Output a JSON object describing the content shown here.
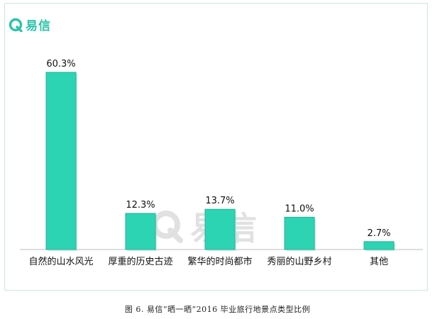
{
  "brand": {
    "name": "易信"
  },
  "watermark": {
    "text": "易信"
  },
  "caption": "图 6. 易信“晒一晒”2016 毕业旅行地景点类型比例",
  "colors": {
    "bar": "#2dd4b4",
    "bar_edge": "#21b394",
    "axis": "#bdbdbd",
    "brand": "#2bc4a8"
  },
  "chart_data": {
    "type": "bar",
    "title": "",
    "xlabel": "",
    "ylabel": "",
    "categories": [
      "自然的山水风光",
      "厚重的历史古迹",
      "繁华的时尚都市",
      "秀丽的山野乡村",
      "其他"
    ],
    "values": [
      60.3,
      12.3,
      13.7,
      11.0,
      2.7
    ],
    "value_labels": [
      "60.3%",
      "12.3%",
      "13.7%",
      "11.0%",
      "2.7%"
    ],
    "unit": "%",
    "ylim": [
      0,
      62
    ],
    "grid": false,
    "legend": "none"
  }
}
